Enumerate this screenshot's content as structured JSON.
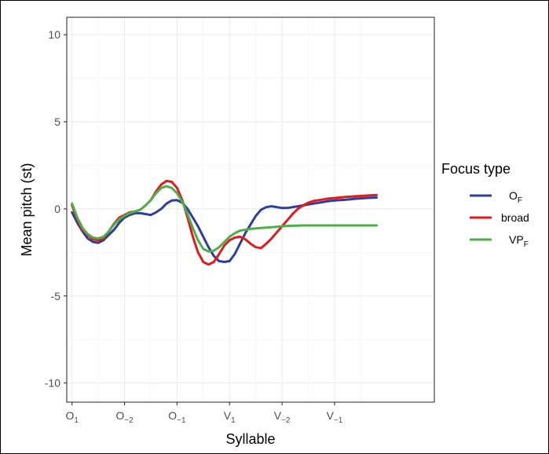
{
  "chart_data": {
    "type": "line",
    "xlabel": "Syllable",
    "ylabel": "Mean pitch (st)",
    "xlim": [
      -0.1,
      6.9
    ],
    "ylim": [
      -11.1,
      11
    ],
    "y_ticks": [
      10,
      5,
      0,
      -5,
      -10
    ],
    "y_tick_labels": [
      "10",
      "5",
      "0",
      "-5",
      "-10"
    ],
    "x_ticks": [
      0,
      1,
      2,
      3,
      4,
      5
    ],
    "x_tick_labels": [
      {
        "base": "O",
        "sub": "1"
      },
      {
        "base": "O",
        "sub": "−2"
      },
      {
        "base": "O",
        "sub": "−1"
      },
      {
        "base": "V",
        "sub": "1"
      },
      {
        "base": "V",
        "sub": "−2"
      },
      {
        "base": "V",
        "sub": "−1"
      }
    ],
    "grid": true,
    "legend": {
      "title": "Focus type",
      "position": "right",
      "entries": [
        {
          "base": "O",
          "sub": "F"
        },
        {
          "base": "broad",
          "sub": ""
        },
        {
          "base": "VP",
          "sub": "F"
        }
      ]
    },
    "series": [
      {
        "name": "O_F",
        "color": "#2e3da0",
        "x": [
          0,
          0.1,
          0.2,
          0.3,
          0.4,
          0.5,
          0.6,
          0.7,
          0.8,
          0.9,
          1.0,
          1.1,
          1.2,
          1.3,
          1.4,
          1.5,
          1.6,
          1.7,
          1.8,
          1.9,
          2.0,
          2.1,
          2.2,
          2.3,
          2.4,
          2.5,
          2.6,
          2.7,
          2.8,
          2.9,
          3.0,
          3.1,
          3.2,
          3.3,
          3.4,
          3.5,
          3.6,
          3.7,
          3.8,
          3.9,
          4.0,
          4.1,
          4.2,
          4.3,
          4.4,
          4.5,
          4.6,
          4.7,
          4.8,
          4.9,
          5.0,
          5.1,
          5.2,
          5.3,
          5.4,
          5.5,
          5.6,
          5.7,
          5.8
        ],
        "y": [
          -0.2,
          -0.8,
          -1.3,
          -1.7,
          -1.9,
          -1.95,
          -1.8,
          -1.5,
          -1.2,
          -0.8,
          -0.5,
          -0.35,
          -0.25,
          -0.25,
          -0.3,
          -0.35,
          -0.2,
          0.0,
          0.3,
          0.48,
          0.5,
          0.35,
          0.0,
          -0.5,
          -1.0,
          -1.6,
          -2.2,
          -2.7,
          -3.0,
          -3.05,
          -3.0,
          -2.6,
          -2.0,
          -1.4,
          -0.9,
          -0.4,
          -0.05,
          0.1,
          0.15,
          0.1,
          0.05,
          0.05,
          0.1,
          0.15,
          0.2,
          0.25,
          0.3,
          0.35,
          0.4,
          0.45,
          0.48,
          0.5,
          0.52,
          0.55,
          0.58,
          0.6,
          0.62,
          0.64,
          0.65
        ]
      },
      {
        "name": "broad",
        "color": "#e31a1c",
        "x": [
          0,
          0.1,
          0.2,
          0.3,
          0.4,
          0.5,
          0.6,
          0.7,
          0.8,
          0.9,
          1.0,
          1.1,
          1.2,
          1.3,
          1.4,
          1.5,
          1.6,
          1.7,
          1.8,
          1.9,
          2.0,
          2.1,
          2.2,
          2.3,
          2.4,
          2.5,
          2.6,
          2.7,
          2.8,
          2.9,
          3.0,
          3.1,
          3.2,
          3.3,
          3.4,
          3.5,
          3.6,
          3.7,
          3.8,
          3.9,
          4.0,
          4.1,
          4.2,
          4.3,
          4.4,
          4.5,
          4.6,
          4.7,
          4.8,
          4.9,
          5.0,
          5.1,
          5.2,
          5.3,
          5.4,
          5.5,
          5.6,
          5.7,
          5.8
        ],
        "y": [
          0.2,
          -0.6,
          -1.2,
          -1.5,
          -1.75,
          -1.8,
          -1.7,
          -1.3,
          -0.85,
          -0.5,
          -0.35,
          -0.2,
          -0.15,
          -0.05,
          0.2,
          0.5,
          1.0,
          1.4,
          1.6,
          1.55,
          1.2,
          0.5,
          -0.5,
          -1.6,
          -2.5,
          -3.05,
          -3.2,
          -3.05,
          -2.6,
          -2.1,
          -1.8,
          -1.65,
          -1.6,
          -1.75,
          -2.0,
          -2.2,
          -2.25,
          -2.0,
          -1.7,
          -1.35,
          -1.0,
          -0.65,
          -0.3,
          0.0,
          0.2,
          0.35,
          0.45,
          0.5,
          0.55,
          0.6,
          0.62,
          0.65,
          0.68,
          0.7,
          0.72,
          0.74,
          0.76,
          0.78,
          0.8
        ]
      },
      {
        "name": "VP_F",
        "color": "#4daf4a",
        "x": [
          0,
          0.1,
          0.2,
          0.3,
          0.4,
          0.5,
          0.6,
          0.7,
          0.8,
          0.9,
          1.0,
          1.1,
          1.2,
          1.3,
          1.4,
          1.5,
          1.6,
          1.7,
          1.8,
          1.9,
          2.0,
          2.1,
          2.2,
          2.3,
          2.4,
          2.5,
          2.6,
          2.7,
          2.8,
          2.9,
          3.0,
          3.1,
          3.2,
          3.3,
          3.4,
          3.5,
          3.6,
          3.7,
          3.8,
          3.9,
          4.0,
          4.1,
          4.2,
          4.3,
          4.4,
          4.5,
          4.6,
          4.7,
          4.8,
          4.9,
          5.0,
          5.1,
          5.2,
          5.3,
          5.4,
          5.5,
          5.6,
          5.7,
          5.8
        ],
        "y": [
          0.3,
          -0.5,
          -1.1,
          -1.45,
          -1.65,
          -1.7,
          -1.6,
          -1.3,
          -0.9,
          -0.6,
          -0.4,
          -0.25,
          -0.15,
          -0.05,
          0.2,
          0.5,
          0.9,
          1.2,
          1.3,
          1.2,
          0.9,
          0.4,
          -0.3,
          -1.1,
          -1.8,
          -2.3,
          -2.45,
          -2.4,
          -2.2,
          -1.9,
          -1.6,
          -1.4,
          -1.25,
          -1.2,
          -1.15,
          -1.12,
          -1.1,
          -1.08,
          -1.05,
          -1.03,
          -1.0,
          -0.98,
          -0.97,
          -0.96,
          -0.95,
          -0.95,
          -0.95,
          -0.95,
          -0.95,
          -0.95,
          -0.95,
          -0.95,
          -0.95,
          -0.95,
          -0.95,
          -0.95,
          -0.95,
          -0.95,
          -0.95
        ]
      }
    ]
  }
}
